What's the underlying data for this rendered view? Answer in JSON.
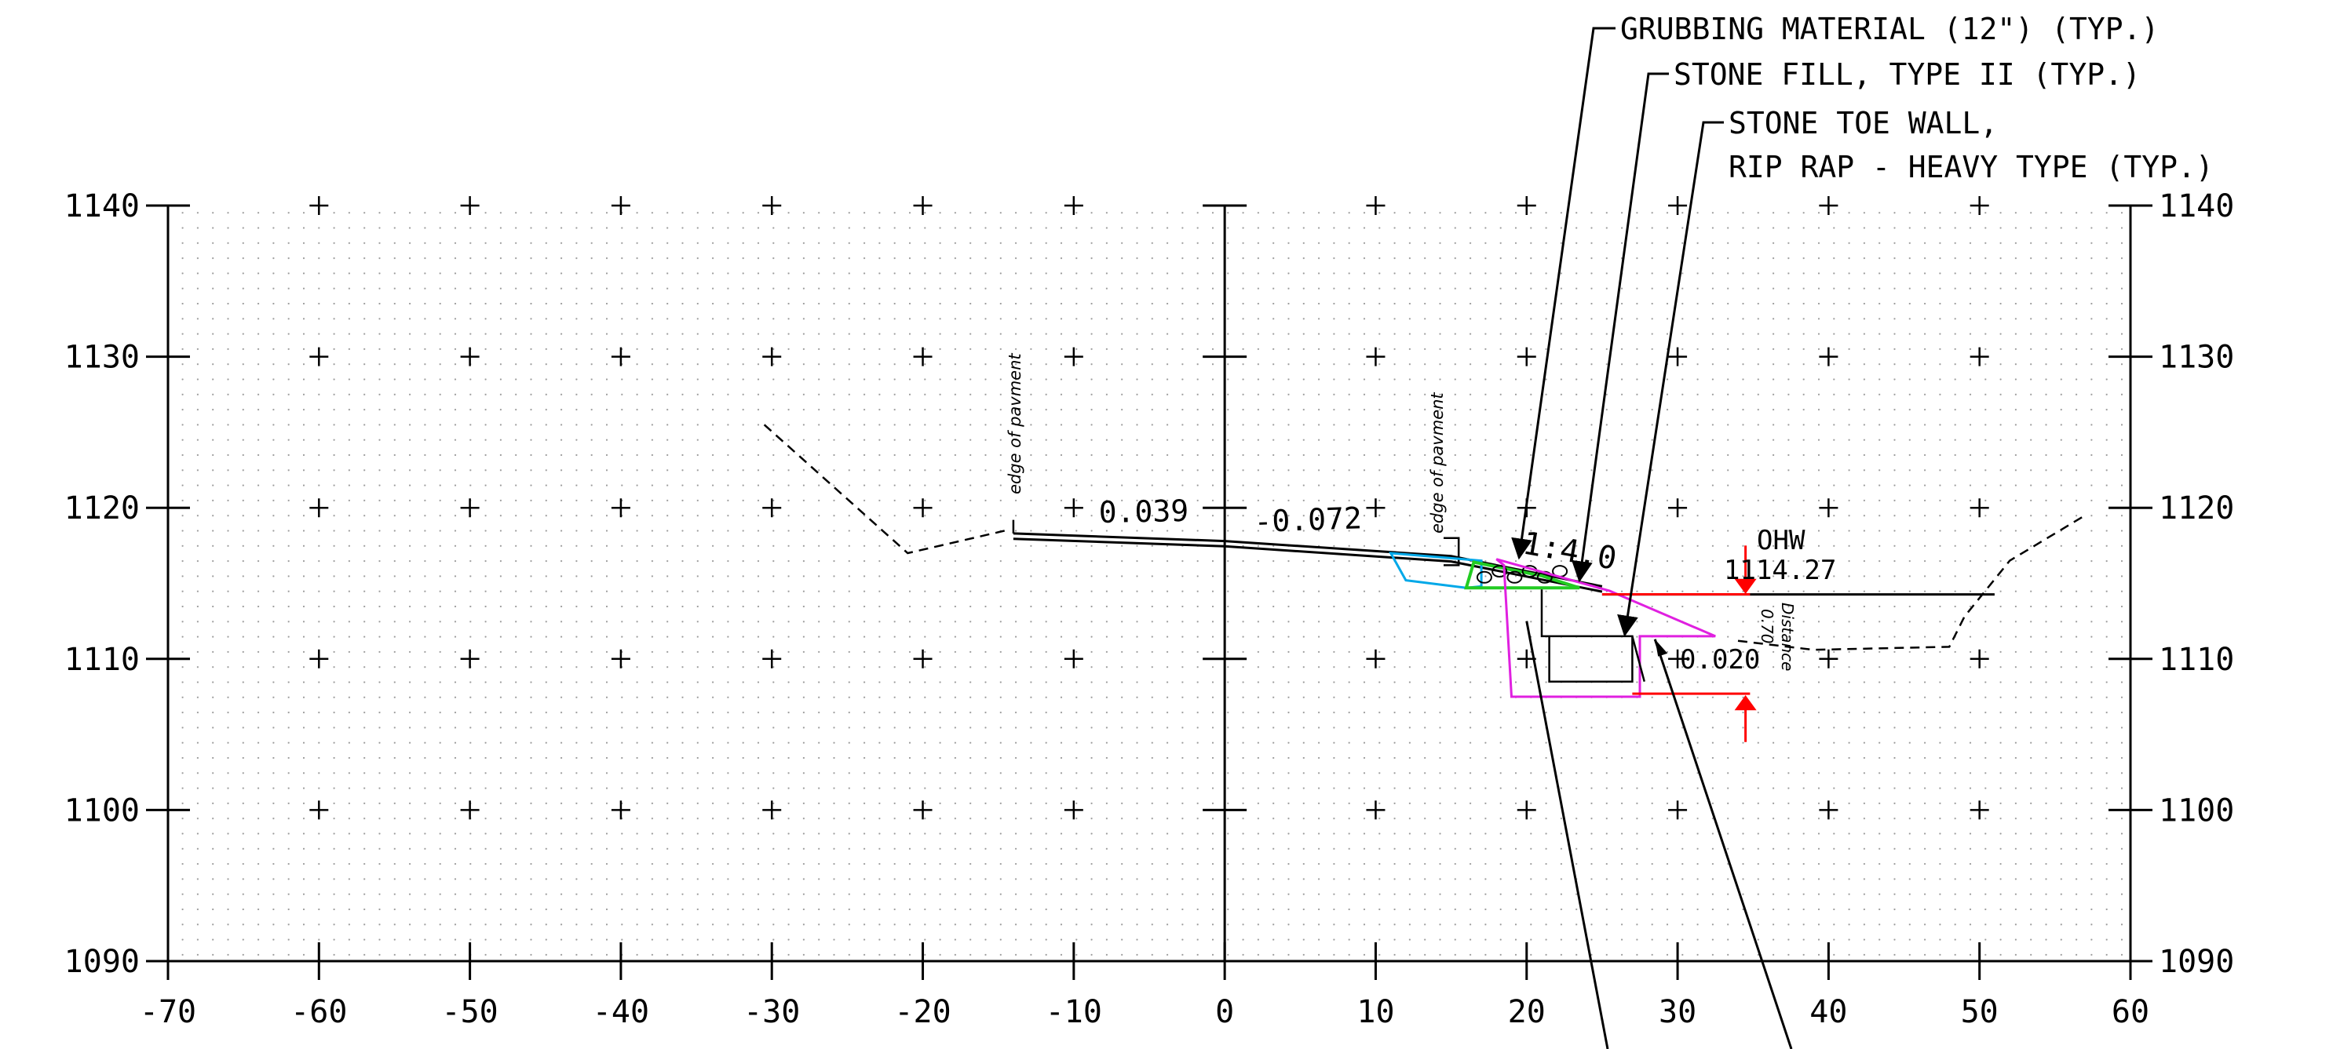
{
  "chart_data": {
    "type": "diagram",
    "x_ticks": [
      "-70",
      "-60",
      "-50",
      "-40",
      "-30",
      "-20",
      "-10",
      "0",
      "10",
      "20",
      "30",
      "40",
      "50",
      "60"
    ],
    "y_ticks": [
      "1090",
      "1100",
      "1110",
      "1120",
      "1130",
      "1140"
    ],
    "xlim": [
      -70,
      60
    ],
    "ylim": [
      1090,
      1140
    ],
    "grid": true,
    "grid_style": "dotted",
    "colors": {
      "ink": "#000000",
      "grubbing": "#00a8e8",
      "stone_fill": "#22cc22",
      "rip_rap": "#e020e0",
      "water_level": "#ff0000"
    },
    "callouts": {
      "grubbing": "GRUBBING MATERIAL (12\") (TYP.)",
      "stone_fill": "STONE FILL, TYPE II (TYP.)",
      "toe_wall_1": "STONE TOE WALL,",
      "toe_wall_2": "RIP RAP -  HEAVY TYPE (TYP.)"
    },
    "annotations": {
      "edge1": "edge of pavment",
      "edge2": "edge of pavment",
      "slope_left": "0.039",
      "slope_right": "-0.072",
      "side_slope": "1:4.0",
      "ohw_label": "OHW",
      "ohw_value": "1114.27",
      "distance_label": "Distance",
      "distance_value": "0.70",
      "toe_slope": "0.020"
    },
    "profiles": {
      "existing_ground": [
        [
          -30.5,
          1125.5
        ],
        [
          -21,
          1117.0
        ],
        [
          -14.5,
          1118.5
        ]
      ],
      "existing_channel": [
        [
          34,
          1111.2
        ],
        [
          39,
          1110.6
        ],
        [
          48,
          1110.8
        ],
        [
          49,
          1112.8
        ],
        [
          52,
          1116.5
        ],
        [
          57,
          1119.5
        ]
      ],
      "finished_grade": [
        [
          -14,
          1118.3
        ],
        [
          0,
          1117.8
        ],
        [
          15,
          1116.8
        ],
        [
          25,
          1114.8
        ]
      ],
      "ohw_line": [
        [
          25,
          1114.27
        ],
        [
          51,
          1114.27
        ]
      ],
      "grubbing_shape": [
        [
          11,
          1117.0
        ],
        [
          17,
          1116.5
        ],
        [
          17,
          1114.8
        ],
        [
          16,
          1114.7
        ],
        [
          12,
          1115.2
        ]
      ],
      "stone_fill_shape": [
        [
          16.5,
          1116.4
        ],
        [
          21,
          1115.5
        ],
        [
          23.5,
          1114.7
        ],
        [
          16,
          1114.7
        ]
      ],
      "rip_rap_shape": [
        [
          18,
          1116.6
        ],
        [
          25.5,
          1114.5
        ],
        [
          32.5,
          1111.5
        ],
        [
          27.5,
          1111.5
        ],
        [
          27.5,
          1107.5
        ],
        [
          19,
          1107.5
        ],
        [
          18.5,
          1116.2
        ]
      ]
    }
  }
}
